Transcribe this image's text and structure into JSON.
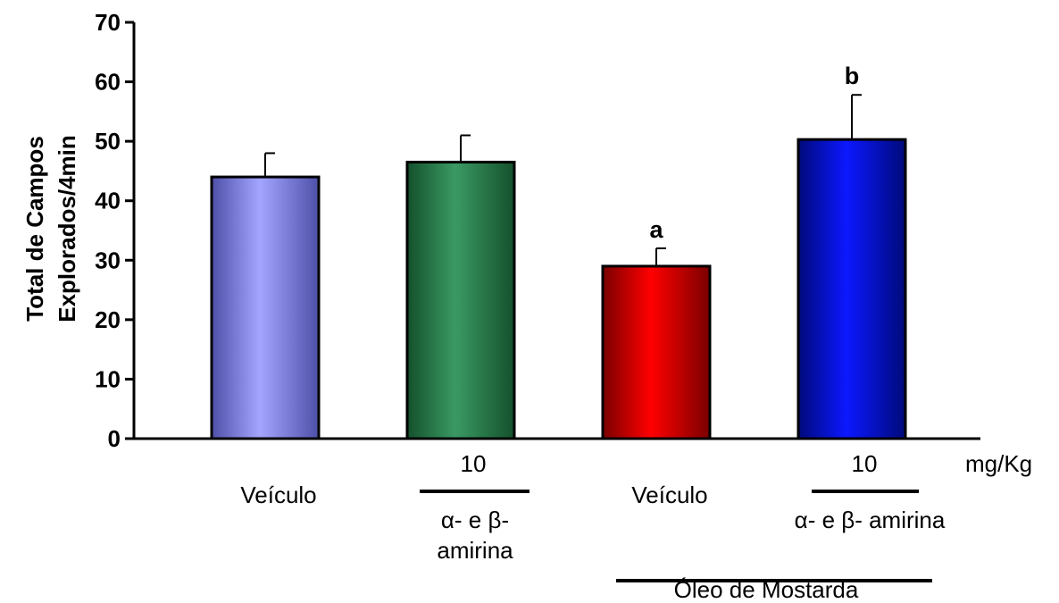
{
  "chart_data": {
    "type": "bar",
    "ylabel": [
      "Total de Campos",
      "Explorados/4min"
    ],
    "ylim": [
      0,
      70
    ],
    "yticks": [
      0,
      10,
      20,
      30,
      40,
      50,
      60,
      70
    ],
    "series": [
      {
        "values": [
          44,
          46.5,
          29,
          50.3
        ],
        "errors": [
          4,
          4.5,
          3,
          7.5
        ]
      }
    ],
    "significance": [
      "",
      "",
      "a",
      "b"
    ],
    "bar_colors": [
      "#9a9cff",
      "#2e8b57",
      "#ff0000",
      "#0a14ff"
    ],
    "dose_labels": [
      "",
      "10",
      "",
      "10"
    ],
    "dose_unit": "mg/Kg",
    "group_labels": {
      "veiculo_1": "Veículo",
      "amirina_1_line1": "α- e β-",
      "amirina_1_line2": "amirina",
      "veiculo_2": "Veículo",
      "amirina_2": "α- e β- amirina",
      "mostarda": "Óleo de Mostarda"
    }
  }
}
